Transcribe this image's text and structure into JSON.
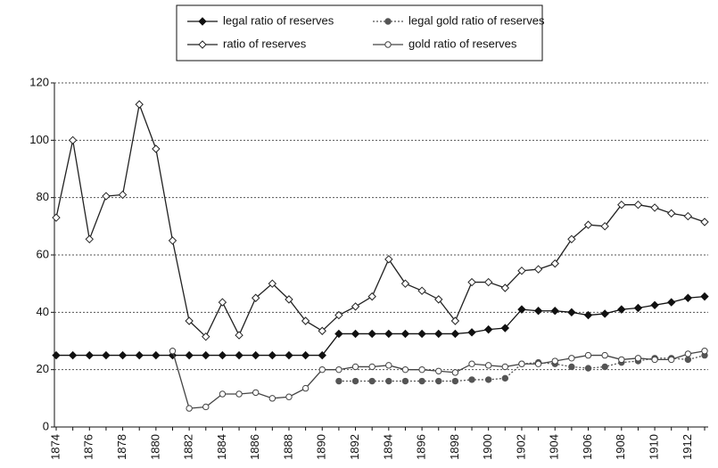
{
  "chart_data": {
    "type": "line",
    "categories": [
      "1874",
      null,
      "1876",
      null,
      "1878",
      null,
      "1880",
      null,
      "1882",
      null,
      "1884",
      null,
      "1886",
      null,
      "1888",
      null,
      "1890",
      null,
      "1892",
      null,
      "1894",
      null,
      "1896",
      null,
      "1898",
      null,
      "1900",
      null,
      "1902",
      null,
      "1904",
      null,
      "1906",
      null,
      "1908",
      null,
      "1910",
      null,
      "1912",
      null
    ],
    "series": [
      {
        "name": "legal ratio of reserves",
        "color": "#111111",
        "marker": "diamond-filled",
        "dash": "solid",
        "values": [
          25,
          25,
          25,
          25,
          25,
          25,
          25,
          25,
          25,
          25,
          25,
          25,
          25,
          25,
          25,
          25,
          25,
          32.5,
          32.5,
          32.5,
          32.5,
          32.5,
          32.5,
          32.5,
          32.5,
          33,
          34,
          34.5,
          41,
          40.5,
          40.5,
          40,
          39,
          39.5,
          41,
          41.5,
          42.5,
          43.5,
          45,
          45.5
        ]
      },
      {
        "name": "legal gold ratio of reserves",
        "color": "#555555",
        "marker": "circle-filled",
        "dash": "dotted",
        "values": [
          null,
          null,
          null,
          null,
          null,
          null,
          null,
          null,
          null,
          null,
          null,
          null,
          null,
          null,
          null,
          null,
          null,
          16,
          16,
          16,
          16,
          16,
          16,
          16,
          16,
          16.5,
          16.5,
          17,
          22,
          22.5,
          22,
          21,
          20.5,
          21,
          22.5,
          23,
          24,
          24,
          23.5,
          25
        ]
      },
      {
        "name": "ratio of reserves",
        "color": "#222222",
        "marker": "diamond-open",
        "dash": "solid",
        "values": [
          73,
          100,
          65.5,
          80.5,
          81,
          112.5,
          97,
          65,
          37,
          31.5,
          43.5,
          32,
          45,
          50,
          44.5,
          37,
          33.5,
          39,
          42,
          45.5,
          58.5,
          50,
          47.5,
          44.5,
          37,
          50.5,
          50.5,
          48.5,
          54.5,
          55,
          57,
          65.5,
          70.5,
          70,
          77.5,
          77.5,
          76.5,
          74.5,
          73.5,
          71.5
        ]
      },
      {
        "name": "gold ratio of reserves",
        "color": "#444444",
        "marker": "circle-open",
        "dash": "solid",
        "values": [
          null,
          null,
          null,
          null,
          null,
          null,
          null,
          26.5,
          6.5,
          7,
          11.5,
          11.5,
          12,
          10,
          10.5,
          13.5,
          20,
          20,
          21,
          21,
          21.5,
          20,
          20,
          19.5,
          19,
          22,
          21.5,
          21,
          22,
          22,
          23,
          24,
          25,
          25,
          23.5,
          24,
          23.5,
          23.5,
          25.5,
          26.5
        ]
      }
    ],
    "ylim": [
      0,
      120
    ],
    "yticks": [
      0,
      20,
      40,
      60,
      80,
      100,
      120
    ],
    "grid": true,
    "legend": "top"
  }
}
